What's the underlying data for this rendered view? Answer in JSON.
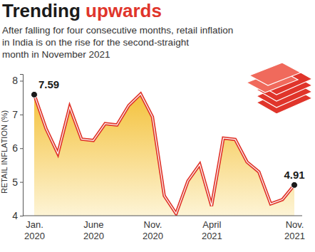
{
  "chart_data": {
    "type": "line",
    "title": "Trending upwards",
    "subtitle": [
      "After falling for four consecutive months, retail inflation",
      "in India is on the rise for the second-straight",
      "month in November 2021"
    ],
    "y_label": "RETAIL INFLATION (%)",
    "categories": [
      "Jan. 2020",
      null,
      null,
      null,
      null,
      "June 2020",
      null,
      null,
      null,
      null,
      "Nov. 2020",
      null,
      null,
      null,
      null,
      "April 2021",
      null,
      null,
      null,
      null,
      null,
      null,
      "Nov. 2021"
    ],
    "values": [
      7.59,
      6.58,
      5.84,
      7.22,
      6.27,
      6.23,
      6.73,
      6.69,
      7.27,
      7.61,
      6.93,
      4.59,
      4.06,
      5.03,
      5.52,
      4.29,
      6.3,
      6.26,
      5.59,
      5.3,
      4.35,
      4.48,
      4.91
    ],
    "color": "#e0352b",
    "ylim": [
      4,
      8.2
    ],
    "yticks": [
      4,
      5,
      6,
      7,
      8
    ],
    "grid": false,
    "marker": "circle",
    "annotations": [
      "7.59",
      "4.91"
    ]
  }
}
